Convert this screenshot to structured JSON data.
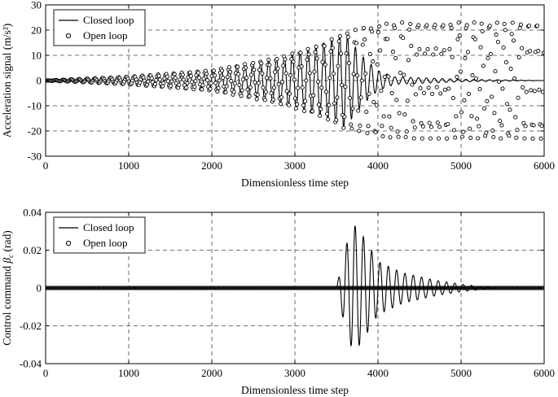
{
  "chart_data": [
    {
      "type": "line",
      "xlabel": "Dimensionless time step",
      "ylabel": "Acceleration signal (m/s²)",
      "xlim": [
        0,
        6000
      ],
      "ylim": [
        -30,
        30
      ],
      "xticks": [
        "0",
        "1000",
        "2000",
        "3000",
        "4000",
        "5000",
        "6000"
      ],
      "yticks": [
        "30",
        "20",
        "10",
        "0",
        "-10",
        "-20",
        "-30"
      ],
      "grid": true,
      "legend_position": "top-left",
      "series": [
        {
          "name": "Closed loop",
          "style": "line",
          "description_points": [
            [
              0,
              0
            ],
            [
              1000,
              1.5
            ],
            [
              2000,
              4
            ],
            [
              2800,
              9
            ],
            [
              3300,
              14
            ],
            [
              3600,
              19
            ],
            [
              3800,
              10
            ],
            [
              4000,
              4
            ],
            [
              4200,
              1.5
            ],
            [
              5000,
              0.5
            ],
            [
              6000,
              0
            ]
          ]
        },
        {
          "name": "Open loop",
          "style": "markers",
          "description_points": [
            [
              0,
              0
            ],
            [
              1000,
              1.5
            ],
            [
              2000,
              4
            ],
            [
              2800,
              9
            ],
            [
              3300,
              14
            ],
            [
              3600,
              19
            ],
            [
              3900,
              21.5
            ],
            [
              4200,
              23
            ],
            [
              6000,
              23
            ]
          ]
        }
      ]
    },
    {
      "type": "line",
      "xlabel": "Dimensionless time step",
      "ylabel": "Control command β_c (rad)",
      "xlim": [
        0,
        6000
      ],
      "ylim": [
        -0.04,
        0.04
      ],
      "xticks": [
        "0",
        "1000",
        "2000",
        "3000",
        "4000",
        "5000",
        "6000"
      ],
      "yticks": [
        "0.04",
        "0.02",
        "0",
        "-0.02",
        "-0.04"
      ],
      "grid": true,
      "legend_position": "top-left",
      "series": [
        {
          "name": "Closed loop",
          "style": "line",
          "envelope": [
            [
              3500,
              0
            ],
            [
              3600,
              0.02
            ],
            [
              3700,
              0.034
            ],
            [
              3800,
              0.029
            ],
            [
              4000,
              0.014
            ],
            [
              4300,
              0.008
            ],
            [
              4700,
              0.004
            ],
            [
              5000,
              0.002
            ],
            [
              5300,
              0.0005
            ],
            [
              5400,
              0
            ]
          ]
        },
        {
          "name": "Open loop",
          "style": "markers",
          "values": "0 over full range"
        }
      ]
    }
  ]
}
